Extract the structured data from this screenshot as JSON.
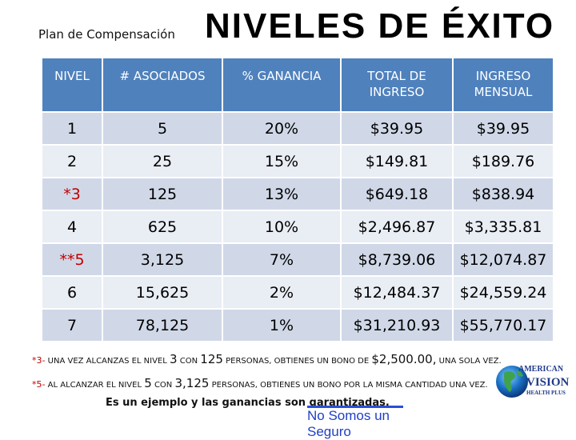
{
  "header": {
    "subtitle": "Plan de Compensación",
    "title": "NIVELES DE ÉXITO"
  },
  "table": {
    "headers": [
      "NIVEL",
      "# ASOCIADOS",
      "% GANANCIA",
      "TOTAL DE INGRESO",
      "INGRESO MENSUAL"
    ],
    "rows": [
      [
        "1",
        "5",
        "20%",
        "$39.95",
        "$39.95"
      ],
      [
        "2",
        "25",
        "15%",
        "$149.81",
        "$189.76"
      ],
      [
        "*3",
        "125",
        "13%",
        "$649.18",
        "$838.94"
      ],
      [
        "4",
        "625",
        "10%",
        "$2,496.87",
        "$3,335.81"
      ],
      [
        "**5",
        "3,125",
        "7%",
        "$8,739.06",
        "$12,074.87"
      ],
      [
        "6",
        "15,625",
        "2%",
        "$12,484.37",
        "$24,559.24"
      ],
      [
        "7",
        "78,125",
        "1%",
        "$31,210.93",
        "$55,770.17"
      ]
    ]
  },
  "notes": {
    "n1": {
      "star": "*3-",
      "t1": "UNA VEZ ALCANZAS EL NIVEL",
      "b1": "3",
      "t2": "CON",
      "b2": "125",
      "t3": "PERSONAS, OBTIENES UN BONO DE",
      "b3": "$2,500.00,",
      "t4": "UNA SOLA VEZ."
    },
    "n2": {
      "star": "*5-",
      "t1": "AL ALCANZAR EL NIVEL",
      "b1": "5",
      "t2": "CON",
      "b2": "3,125",
      "t3": "PERSONAS, OBTIENES UN BONO POR LA MISMA CANTIDAD UNA VEZ."
    }
  },
  "example": "Es un ejemplo y las ganancias son garantizadas.",
  "disclaimer": "No Somos un Seguro",
  "logo": {
    "line1": "AMERICAN",
    "line2": "VISION",
    "line3": "HEALTH PLUS"
  }
}
